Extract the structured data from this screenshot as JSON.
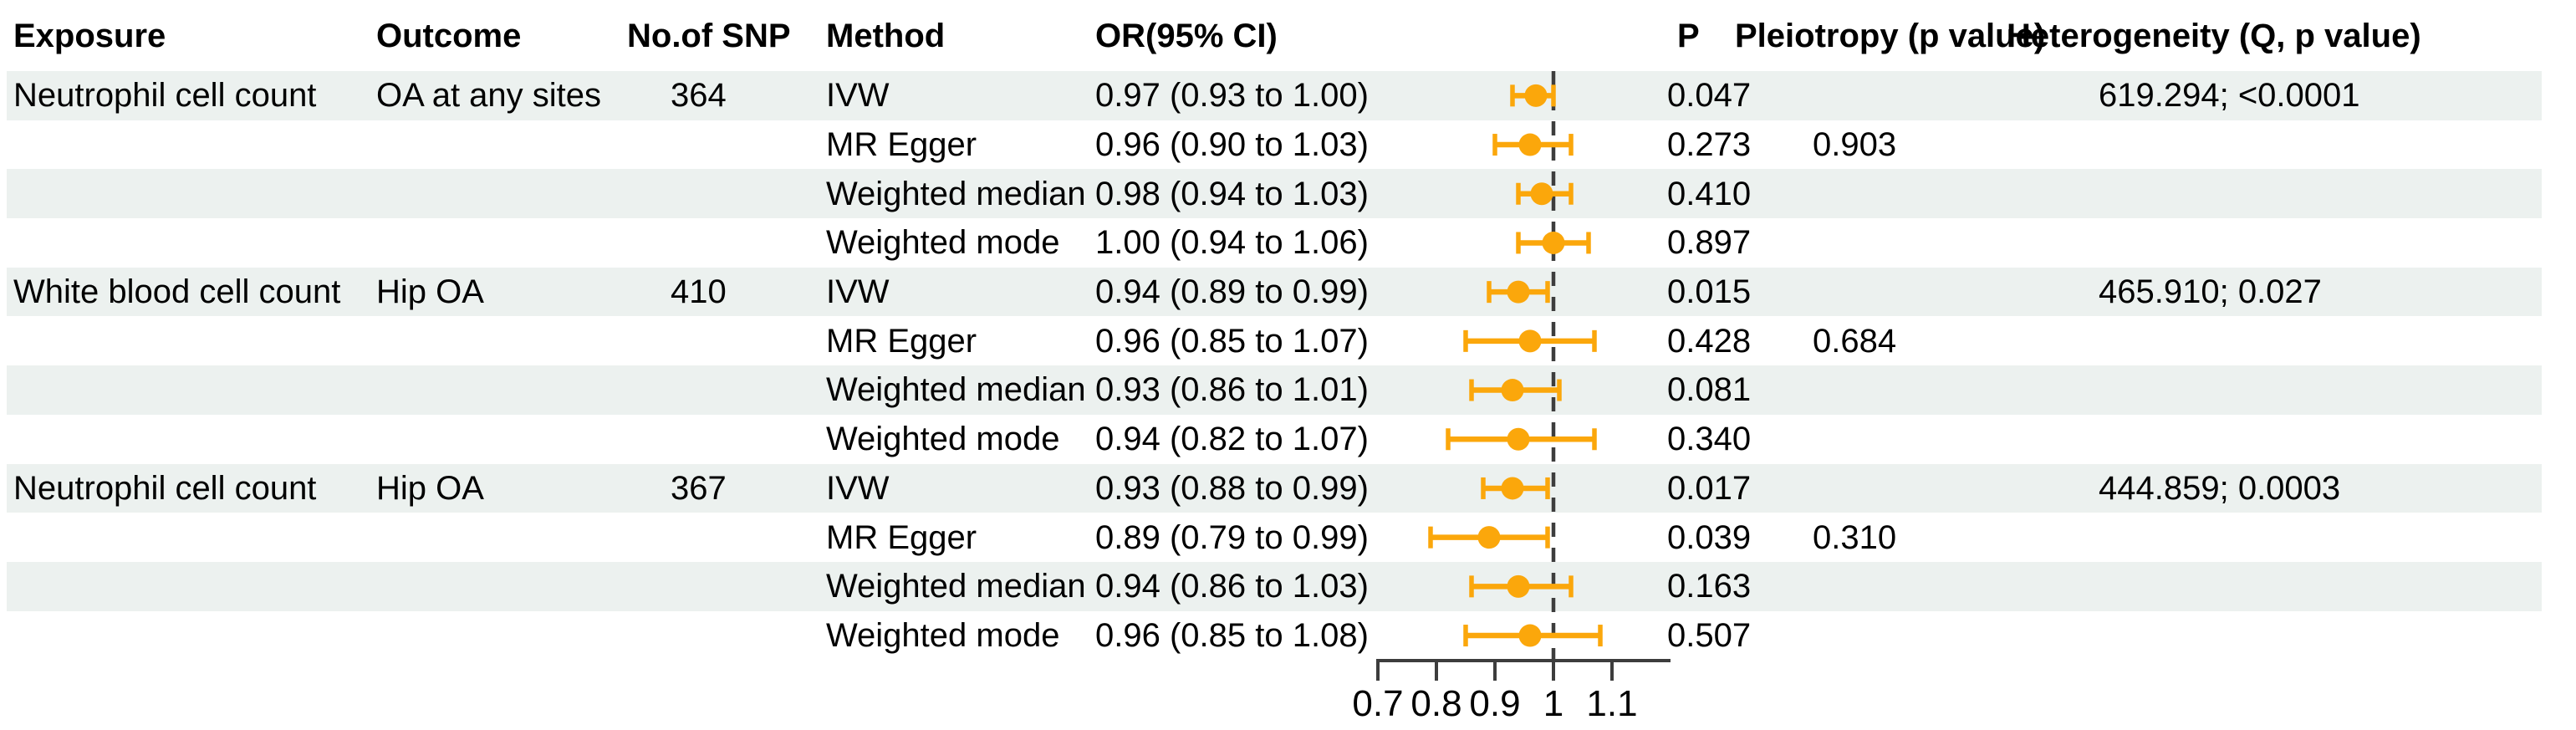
{
  "figure_title": "MR forest plot",
  "table": {
    "columns": [
      {
        "key": "exposure",
        "label": "Exposure"
      },
      {
        "key": "outcome",
        "label": "Outcome"
      },
      {
        "key": "snp",
        "label": "No.of SNP"
      },
      {
        "key": "method",
        "label": "Method"
      },
      {
        "key": "or_ci",
        "label": "OR(95% CI)"
      },
      {
        "key": "p",
        "label": "P"
      },
      {
        "key": "pleiotropy",
        "label": "Pleiotropy (p value)"
      },
      {
        "key": "heterogeneity",
        "label": "Heterogeneity (Q, p value)"
      }
    ]
  },
  "rows": [
    {
      "exposure": "Neutrophil cell count",
      "outcome": "OA at any sites",
      "snp": "364",
      "method": "IVW",
      "or_ci": "0.97 (0.93 to 1.00)",
      "p": "0.047",
      "pleiotropy": "",
      "heterogeneity": "619.294; <0.0001"
    },
    {
      "exposure": "",
      "outcome": "",
      "snp": "",
      "method": "MR Egger",
      "or_ci": "0.96 (0.90 to 1.03)",
      "p": "0.273",
      "pleiotropy": "0.903",
      "heterogeneity": ""
    },
    {
      "exposure": "",
      "outcome": "",
      "snp": "",
      "method": "Weighted median",
      "or_ci": "0.98 (0.94 to 1.03)",
      "p": "0.410",
      "pleiotropy": "",
      "heterogeneity": ""
    },
    {
      "exposure": "",
      "outcome": "",
      "snp": "",
      "method": "Weighted mode",
      "or_ci": "1.00 (0.94 to 1.06)",
      "p": "0.897",
      "pleiotropy": "",
      "heterogeneity": ""
    },
    {
      "exposure": "White blood cell count",
      "outcome": "Hip OA",
      "snp": "410",
      "method": "IVW",
      "or_ci": "0.94 (0.89 to 0.99)",
      "p": "0.015",
      "pleiotropy": "",
      "heterogeneity": "465.910; 0.027"
    },
    {
      "exposure": "",
      "outcome": "",
      "snp": "",
      "method": "MR Egger",
      "or_ci": "0.96 (0.85 to 1.07)",
      "p": "0.428",
      "pleiotropy": "0.684",
      "heterogeneity": ""
    },
    {
      "exposure": "",
      "outcome": "",
      "snp": "",
      "method": "Weighted median",
      "or_ci": "0.93 (0.86 to 1.01)",
      "p": "0.081",
      "pleiotropy": "",
      "heterogeneity": ""
    },
    {
      "exposure": "",
      "outcome": "",
      "snp": "",
      "method": "Weighted mode",
      "or_ci": "0.94 (0.82 to 1.07)",
      "p": "0.340",
      "pleiotropy": "",
      "heterogeneity": ""
    },
    {
      "exposure": "Neutrophil cell count",
      "outcome": "Hip OA",
      "snp": "367",
      "method": "IVW",
      "or_ci": "0.93 (0.88 to 0.99)",
      "p": "0.017",
      "pleiotropy": "",
      "heterogeneity": "444.859; 0.0003"
    },
    {
      "exposure": "",
      "outcome": "",
      "snp": "",
      "method": "MR Egger",
      "or_ci": "0.89 (0.79 to 0.99)",
      "p": "0.039",
      "pleiotropy": "0.310",
      "heterogeneity": ""
    },
    {
      "exposure": "",
      "outcome": "",
      "snp": "",
      "method": "Weighted median",
      "or_ci": "0.94 (0.86 to 1.03)",
      "p": "0.163",
      "pleiotropy": "",
      "heterogeneity": ""
    },
    {
      "exposure": "",
      "outcome": "",
      "snp": "",
      "method": "Weighted mode",
      "or_ci": "0.96 (0.85 to 1.08)",
      "p": "0.507",
      "pleiotropy": "",
      "heterogeneity": ""
    }
  ],
  "chart_data": {
    "type": "scatter",
    "variant": "forest-plot",
    "title": "",
    "xlabel": "",
    "ylabel": "",
    "x_ticks": [
      0.7,
      0.8,
      0.9,
      1,
      1.1
    ],
    "x_range": [
      0.7,
      1.2
    ],
    "reference_line": 1,
    "reference_line_style": "dashed",
    "grid": false,
    "legend": "none",
    "groups": [
      {
        "exposure": "Neutrophil cell count",
        "outcome": "OA at any sites",
        "n_snp": 364
      },
      {
        "exposure": "White blood cell count",
        "outcome": "Hip OA",
        "n_snp": 410
      },
      {
        "exposure": "Neutrophil cell count",
        "outcome": "Hip OA",
        "n_snp": 367
      }
    ],
    "points": [
      {
        "method": "IVW",
        "or": 0.97,
        "ci_low": 0.93,
        "ci_high": 1.0
      },
      {
        "method": "MR Egger",
        "or": 0.96,
        "ci_low": 0.9,
        "ci_high": 1.03
      },
      {
        "method": "Weighted median",
        "or": 0.98,
        "ci_low": 0.94,
        "ci_high": 1.03
      },
      {
        "method": "Weighted mode",
        "or": 1.0,
        "ci_low": 0.94,
        "ci_high": 1.06
      },
      {
        "method": "IVW",
        "or": 0.94,
        "ci_low": 0.89,
        "ci_high": 0.99
      },
      {
        "method": "MR Egger",
        "or": 0.96,
        "ci_low": 0.85,
        "ci_high": 1.07
      },
      {
        "method": "Weighted median",
        "or": 0.93,
        "ci_low": 0.86,
        "ci_high": 1.01
      },
      {
        "method": "Weighted mode",
        "or": 0.94,
        "ci_low": 0.82,
        "ci_high": 1.07
      },
      {
        "method": "IVW",
        "or": 0.93,
        "ci_low": 0.88,
        "ci_high": 0.99
      },
      {
        "method": "MR Egger",
        "or": 0.89,
        "ci_low": 0.79,
        "ci_high": 0.99
      },
      {
        "method": "Weighted median",
        "or": 0.94,
        "ci_low": 0.86,
        "ci_high": 1.03
      },
      {
        "method": "Weighted mode",
        "or": 0.96,
        "ci_low": 0.85,
        "ci_high": 1.08
      }
    ]
  },
  "colors": {
    "marker": "#FBA70B",
    "stripe": "#ECF1EF",
    "reference_line": "#3D3D3D",
    "axis": "#3D3D3D",
    "text": "#000000",
    "background": "#FFFFFF"
  }
}
